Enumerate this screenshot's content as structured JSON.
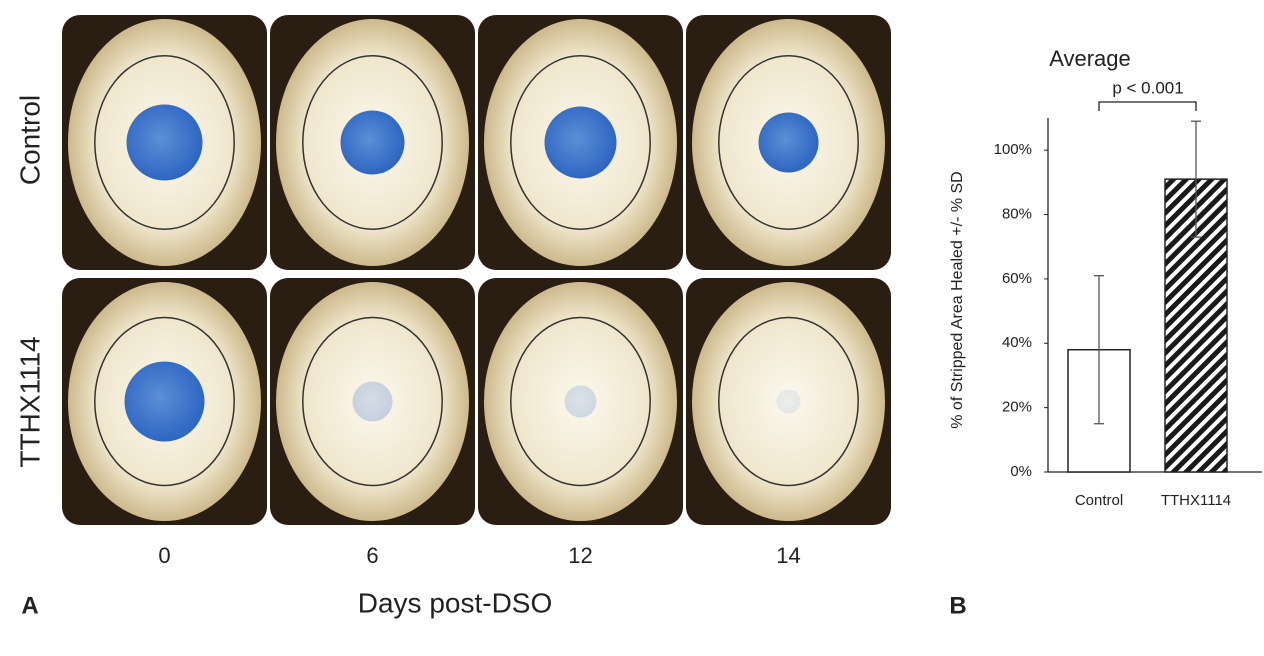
{
  "panel_a": {
    "label": "A",
    "row_labels": [
      "Control",
      "TTHX1114"
    ],
    "column_labels": [
      "0",
      "6",
      "12",
      "14"
    ],
    "x_label": "Days post-DSO"
  },
  "chart_data": {
    "type": "bar",
    "panel_label": "B",
    "title": "Average",
    "annotation": "p < 0.001",
    "y_label": "% of Stripped Area Healed +/- % SD",
    "categories": [
      "Control",
      "TTHX1114"
    ],
    "values": [
      38,
      91
    ],
    "errors": [
      23,
      18
    ],
    "ylim": [
      0,
      110
    ],
    "yticks": [
      {
        "value": 0,
        "label": "0%"
      },
      {
        "value": 20,
        "label": "20%"
      },
      {
        "value": 40,
        "label": "40%"
      },
      {
        "value": 60,
        "label": "60%"
      },
      {
        "value": 80,
        "label": "80%"
      },
      {
        "value": 100,
        "label": "100%"
      }
    ]
  }
}
